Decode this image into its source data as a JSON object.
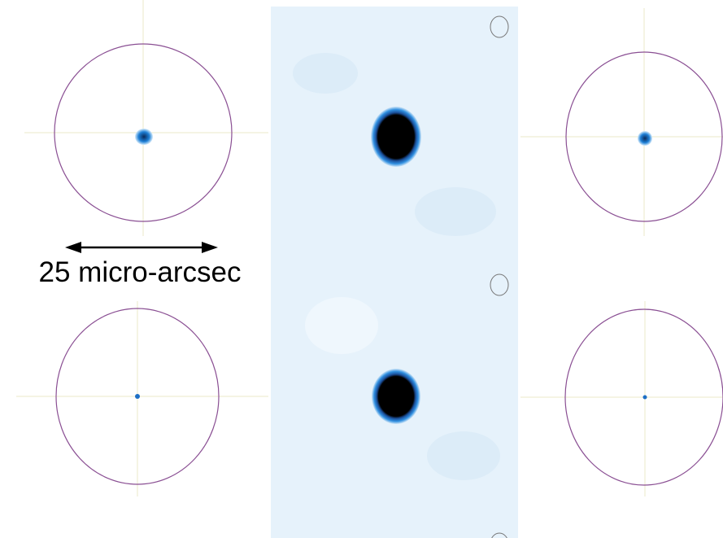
{
  "annotation": {
    "label": "25 micro-arcsec"
  }
}
